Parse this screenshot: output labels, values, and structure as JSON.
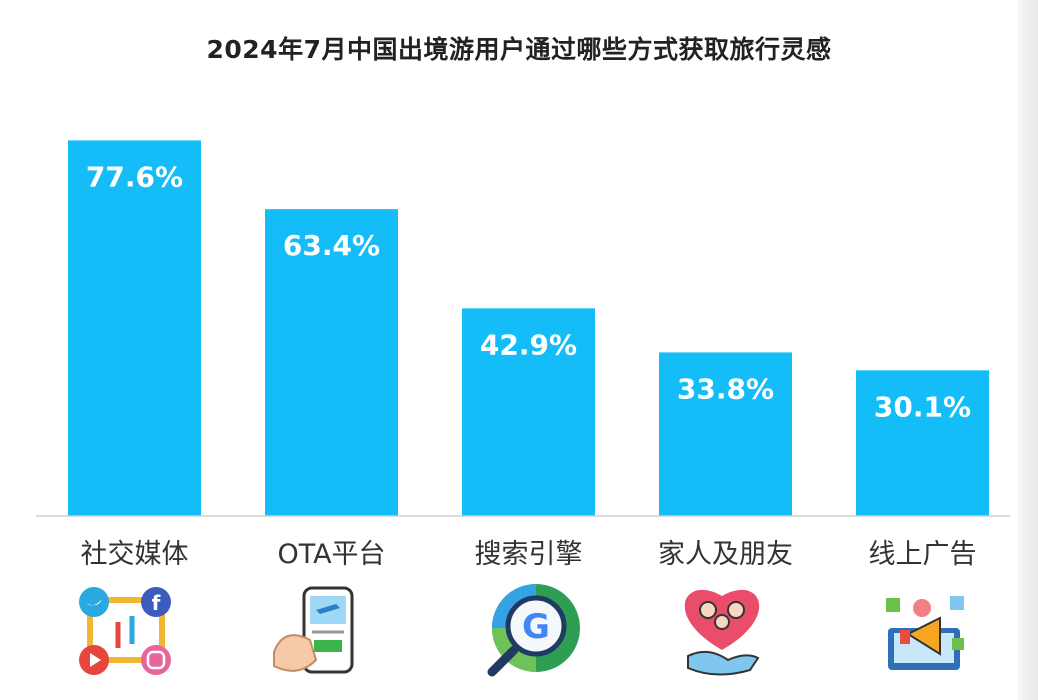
{
  "chart_data": {
    "type": "bar",
    "title": "2024年7月中国出境游用户通过哪些方式获取旅行灵感",
    "categories": [
      "社交媒体",
      "OTA平台",
      "搜索引擎",
      "家人及朋友",
      "线上广告"
    ],
    "values": [
      77.6,
      63.4,
      42.9,
      33.8,
      30.1
    ],
    "value_labels": [
      "77.6%",
      "63.4%",
      "42.9%",
      "33.8%",
      "30.1%"
    ],
    "unit": "%",
    "ylim": [
      0,
      100
    ],
    "grid": false,
    "legend": "none",
    "bar_color": "#14bdf7"
  },
  "icons": [
    "social-media-icons",
    "ota-phone-booking-icon",
    "search-engine-magnifier-icon",
    "family-friends-heart-icon",
    "online-ad-megaphone-icon"
  ],
  "colors": {
    "bar": "#14bdf7",
    "text": "#333333",
    "title": "#222222",
    "baseline": "#cfcfcf"
  }
}
